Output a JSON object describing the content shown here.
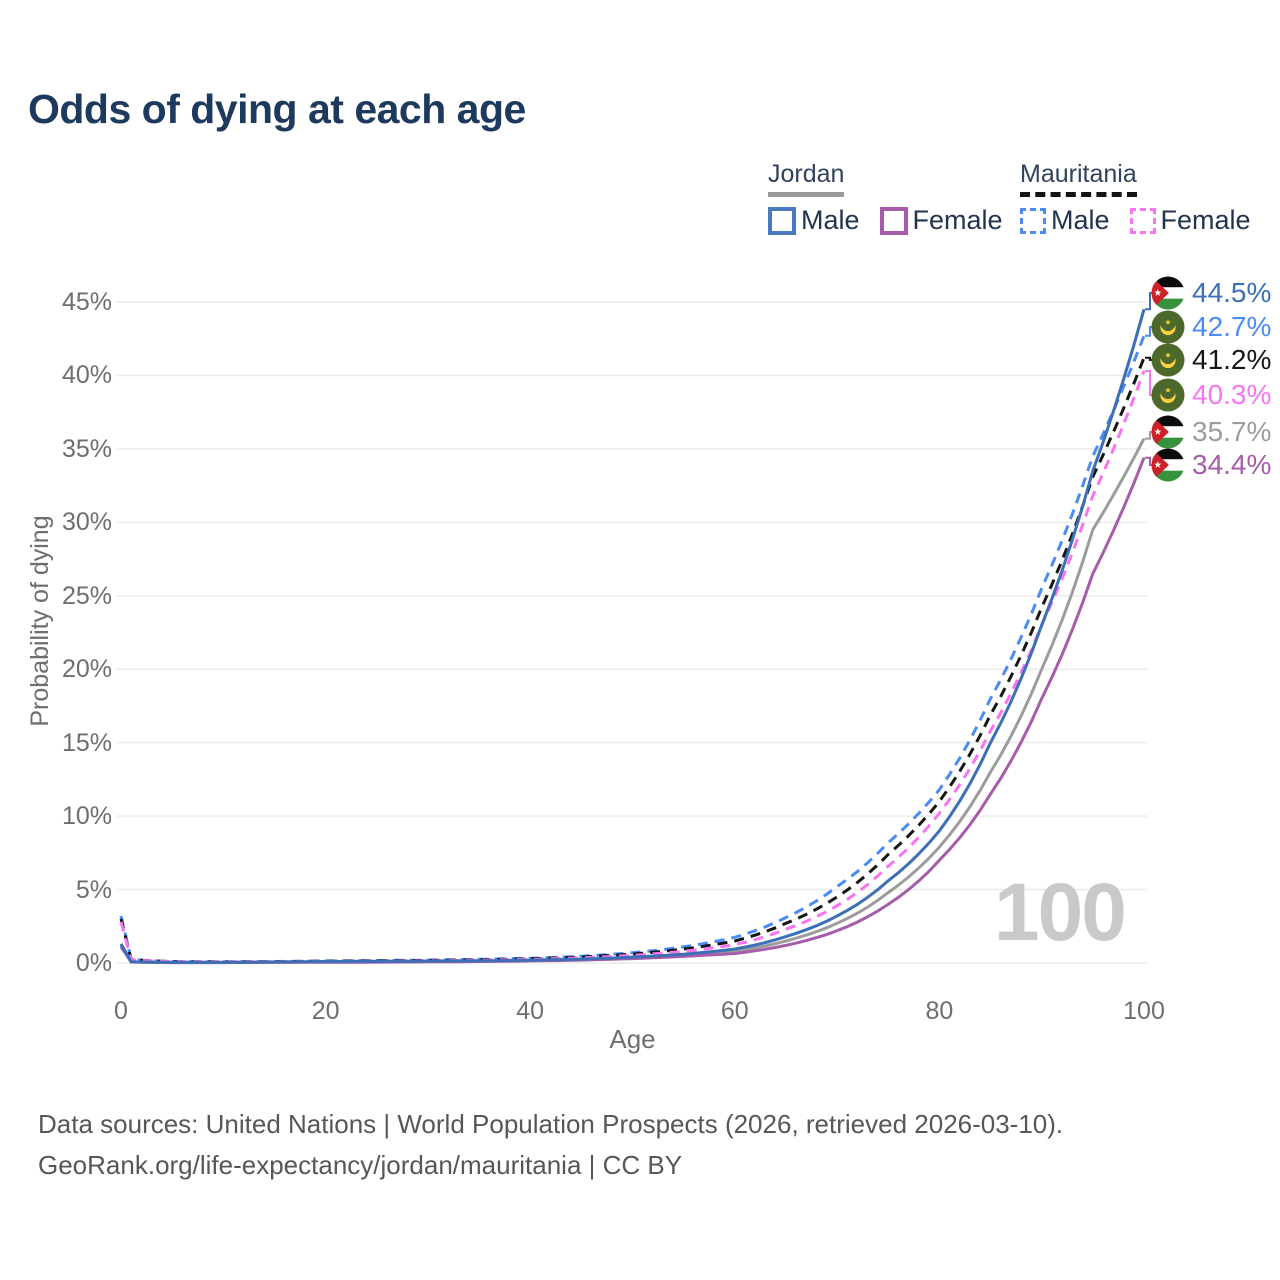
{
  "header": {
    "title": "Odds of dying at each age"
  },
  "legend": {
    "groups": [
      {
        "country": "Jordan",
        "line_style": "solid",
        "underline_color": "#9a9a9a",
        "items": [
          {
            "label": "Male",
            "color": "#4a79bd"
          },
          {
            "label": "Female",
            "color": "#a45cab"
          }
        ]
      },
      {
        "country": "Mauritania",
        "line_style": "dashed",
        "underline_color": "#141414",
        "items": [
          {
            "label": "Male",
            "color": "#4a8bf5"
          },
          {
            "label": "Female",
            "color": "#f874f2"
          }
        ]
      }
    ]
  },
  "chart_data": {
    "type": "line",
    "title": "Odds of dying at each age",
    "xlabel": "Age",
    "ylabel": "Probability of dying",
    "grid": true,
    "legend_position": "top-right",
    "xlim": [
      0,
      100
    ],
    "ylim_pct": [
      0,
      45
    ],
    "x_ticks": [
      0,
      20,
      40,
      60,
      80,
      100
    ],
    "x_tick_labels": [
      "0",
      "20",
      "40",
      "60",
      "80",
      "100"
    ],
    "y_ticks_pct": [
      0,
      5,
      10,
      15,
      20,
      25,
      30,
      35,
      40,
      45
    ],
    "y_tick_labels": [
      "0%",
      "5%",
      "10%",
      "15%",
      "20%",
      "25%",
      "30%",
      "35%",
      "40%",
      "45%"
    ],
    "watermark_age": "100",
    "ages": [
      0,
      1,
      5,
      10,
      15,
      20,
      25,
      30,
      35,
      40,
      45,
      50,
      55,
      60,
      65,
      70,
      75,
      80,
      85,
      90,
      95,
      100
    ],
    "series": [
      {
        "name": "Jordan Male",
        "country": "Jordan",
        "sex": "Male",
        "line_style": "solid",
        "color": "#3d6fb6",
        "flag": "jordan",
        "end_label": "44.5%",
        "values_pct": [
          1.3,
          0.08,
          0.04,
          0.04,
          0.07,
          0.1,
          0.11,
          0.13,
          0.15,
          0.19,
          0.26,
          0.4,
          0.6,
          0.95,
          1.8,
          3.2,
          5.6,
          9.0,
          15.0,
          23.0,
          33.5,
          44.5
        ]
      },
      {
        "name": "Mauritania Male",
        "country": "Mauritania",
        "sex": "Male",
        "line_style": "dashed",
        "color": "#4a8bf5",
        "flag": "mauritania",
        "end_label": "42.7%",
        "values_pct": [
          3.2,
          0.25,
          0.1,
          0.08,
          0.1,
          0.14,
          0.17,
          0.2,
          0.25,
          0.32,
          0.46,
          0.7,
          1.1,
          1.75,
          3.1,
          5.2,
          8.2,
          11.8,
          18.0,
          25.5,
          34.5,
          42.7
        ]
      },
      {
        "name": "Mauritania",
        "country": "Mauritania",
        "sex": "Both",
        "line_style": "dashed",
        "color": "#161616",
        "flag": "mauritania",
        "end_label": "41.2%",
        "values_pct": [
          3.0,
          0.235,
          0.095,
          0.075,
          0.09,
          0.12,
          0.145,
          0.175,
          0.22,
          0.285,
          0.41,
          0.61,
          0.95,
          1.5,
          2.7,
          4.5,
          7.4,
          11.0,
          16.9,
          24.2,
          33.1,
          41.2
        ]
      },
      {
        "name": "Mauritania Female",
        "country": "Mauritania",
        "sex": "Female",
        "line_style": "dashed",
        "color": "#f874f2",
        "flag": "mauritania",
        "end_label": "40.3%",
        "values_pct": [
          2.8,
          0.22,
          0.09,
          0.07,
          0.08,
          0.1,
          0.12,
          0.15,
          0.19,
          0.25,
          0.35,
          0.52,
          0.8,
          1.25,
          2.3,
          3.9,
          6.6,
          10.2,
          15.8,
          23.0,
          31.8,
          40.3
        ]
      },
      {
        "name": "Jordan",
        "country": "Jordan",
        "sex": "Both",
        "line_style": "solid",
        "color": "#9c9c9c",
        "flag": "jordan",
        "end_label": "35.7%",
        "values_pct": [
          1.2,
          0.075,
          0.035,
          0.035,
          0.055,
          0.075,
          0.085,
          0.1,
          0.12,
          0.16,
          0.23,
          0.35,
          0.52,
          0.8,
          1.5,
          2.7,
          4.8,
          7.9,
          13.0,
          20.0,
          29.5,
          35.7
        ]
      },
      {
        "name": "Jordan Female",
        "country": "Jordan",
        "sex": "Female",
        "line_style": "solid",
        "color": "#a45cab",
        "flag": "jordan",
        "end_label": "34.4%",
        "values_pct": [
          1.1,
          0.07,
          0.03,
          0.03,
          0.04,
          0.05,
          0.06,
          0.08,
          0.1,
          0.14,
          0.2,
          0.3,
          0.45,
          0.65,
          1.2,
          2.2,
          4.0,
          7.0,
          11.5,
          18.0,
          26.5,
          34.4
        ]
      }
    ]
  },
  "footer": {
    "line1": "Data sources: United Nations | World Population Prospects (2026, retrieved 2026-03-10).",
    "line2": "GeoRank.org/life-expectancy/jordan/mauritania | CC BY"
  }
}
